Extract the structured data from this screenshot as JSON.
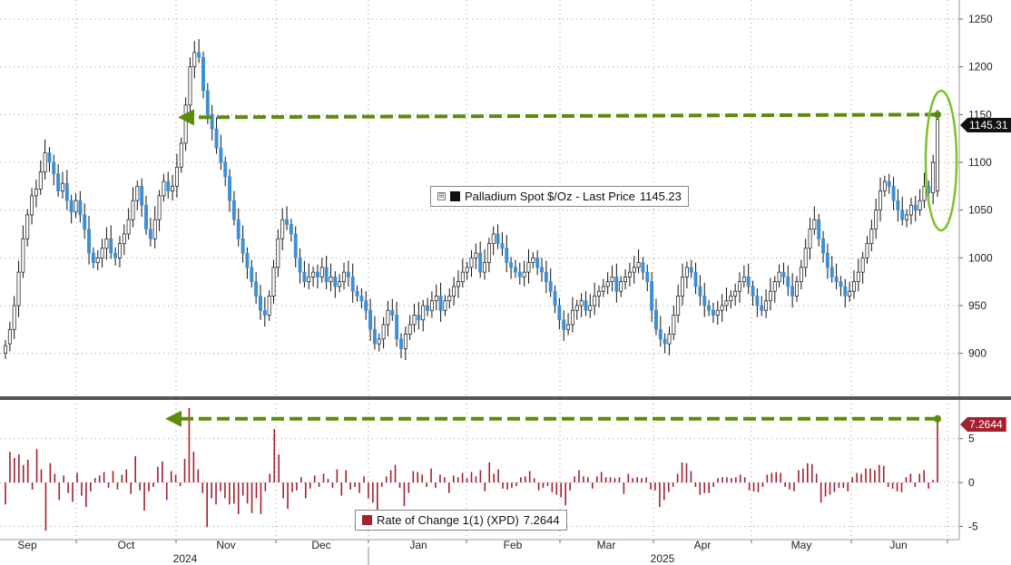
{
  "chart_data": [
    {
      "type": "candlestick",
      "legend": {
        "label": "Palladium Spot $/Oz - Last Price",
        "value": "1145.23",
        "toggle_glyph": "⊞"
      },
      "last_price_tag": "1145.31",
      "y_ticks": [
        "1250",
        "1200",
        "1150",
        "1100",
        "1050",
        "1000",
        "950",
        "900"
      ],
      "ylim": [
        855,
        1270
      ],
      "up_color": "#ffffff",
      "down_color": "#3a8fd6",
      "annotation_color": "#5b8c0a",
      "arrow_from_value": 1150,
      "closes": [
        908,
        925,
        950,
        985,
        1020,
        1045,
        1065,
        1072,
        1090,
        1110,
        1100,
        1088,
        1070,
        1078,
        1060,
        1048,
        1060,
        1045,
        1030,
        1005,
        995,
        1000,
        1010,
        1020,
        1005,
        1000,
        1015,
        1025,
        1040,
        1060,
        1075,
        1055,
        1030,
        1020,
        1040,
        1065,
        1080,
        1070,
        1075,
        1095,
        1120,
        1160,
        1200,
        1215,
        1210,
        1175,
        1150,
        1135,
        1115,
        1100,
        1085,
        1060,
        1040,
        1020,
        1005,
        990,
        975,
        960,
        945,
        940,
        960,
        990,
        1020,
        1040,
        1035,
        1025,
        1000,
        985,
        975,
        980,
        985,
        980,
        990,
        975,
        980,
        970,
        975,
        985,
        980,
        965,
        960,
        955,
        945,
        925,
        910,
        915,
        930,
        945,
        940,
        915,
        905,
        920,
        930,
        940,
        935,
        950,
        945,
        955,
        960,
        945,
        955,
        960,
        970,
        975,
        985,
        990,
        1000,
        1005,
        985,
        995,
        1015,
        1025,
        1015,
        1010,
        995,
        990,
        985,
        980,
        985,
        995,
        1000,
        990,
        985,
        975,
        965,
        950,
        935,
        925,
        930,
        945,
        950,
        955,
        945,
        950,
        960,
        965,
        970,
        975,
        980,
        965,
        975,
        980,
        985,
        990,
        995,
        985,
        975,
        945,
        925,
        915,
        910,
        920,
        940,
        960,
        980,
        990,
        985,
        970,
        960,
        950,
        945,
        940,
        945,
        950,
        955,
        960,
        965,
        975,
        980,
        970,
        960,
        950,
        945,
        955,
        965,
        975,
        985,
        980,
        970,
        960,
        975,
        990,
        1010,
        1030,
        1040,
        1020,
        1005,
        990,
        980,
        975,
        970,
        960,
        965,
        975,
        985,
        1000,
        1015,
        1030,
        1050,
        1070,
        1080,
        1075,
        1060,
        1050,
        1040,
        1045,
        1055,
        1050,
        1060,
        1075,
        1068,
        1100,
        1145
      ],
      "opens": [
        900,
        910,
        925,
        950,
        985,
        1020,
        1045,
        1065,
        1072,
        1090,
        1110,
        1100,
        1088,
        1070,
        1078,
        1060,
        1048,
        1060,
        1045,
        1030,
        1005,
        995,
        1000,
        1010,
        1020,
        1005,
        1000,
        1015,
        1025,
        1040,
        1060,
        1075,
        1055,
        1030,
        1020,
        1040,
        1065,
        1080,
        1070,
        1075,
        1095,
        1120,
        1160,
        1200,
        1215,
        1210,
        1175,
        1150,
        1135,
        1115,
        1100,
        1085,
        1060,
        1040,
        1020,
        1005,
        990,
        975,
        960,
        945,
        940,
        960,
        990,
        1020,
        1040,
        1035,
        1025,
        1000,
        985,
        975,
        980,
        985,
        980,
        990,
        975,
        980,
        970,
        975,
        985,
        980,
        965,
        960,
        955,
        945,
        925,
        910,
        915,
        930,
        945,
        940,
        915,
        905,
        920,
        930,
        940,
        935,
        950,
        945,
        955,
        960,
        945,
        955,
        960,
        970,
        975,
        985,
        990,
        1000,
        1005,
        985,
        995,
        1015,
        1025,
        1015,
        1010,
        995,
        990,
        985,
        980,
        985,
        995,
        1000,
        990,
        985,
        975,
        965,
        950,
        935,
        925,
        930,
        945,
        950,
        955,
        945,
        950,
        960,
        965,
        970,
        975,
        980,
        965,
        975,
        980,
        985,
        990,
        995,
        985,
        975,
        945,
        925,
        915,
        910,
        920,
        940,
        960,
        980,
        990,
        985,
        970,
        960,
        950,
        945,
        940,
        945,
        950,
        955,
        960,
        965,
        975,
        980,
        970,
        960,
        950,
        945,
        955,
        965,
        975,
        985,
        980,
        970,
        960,
        975,
        990,
        1010,
        1030,
        1040,
        1020,
        1005,
        990,
        980,
        975,
        970,
        960,
        965,
        975,
        985,
        1000,
        1015,
        1030,
        1050,
        1070,
        1080,
        1075,
        1060,
        1050,
        1040,
        1045,
        1055,
        1050,
        1060,
        1075,
        1068,
        1070
      ]
    },
    {
      "type": "bar",
      "legend": {
        "label": "Rate of Change 1(1) (XPD)",
        "value": "7.2644"
      },
      "last_value_tag": "7.2644",
      "y_ticks": [
        "5",
        "0",
        "-5"
      ],
      "ylim": [
        -6.2,
        9
      ],
      "bar_color": "#a3202f",
      "arrow_from_value": 7.2644,
      "values": [
        -2.5,
        3.5,
        2.8,
        3.2,
        2.0,
        2.6,
        -0.8,
        3.8,
        1.5,
        -5.5,
        2.2,
        1.0,
        -2.0,
        0.8,
        -1.2,
        -2.2,
        1.1,
        -1.5,
        -2.8,
        -1.0,
        0.5,
        0.8,
        1.2,
        -0.6,
        1.3,
        -0.8,
        0.9,
        1.5,
        -1.3,
        3.0,
        -0.9,
        -3.2,
        -1.0,
        -0.5,
        1.8,
        2.4,
        -2.0,
        1.3,
        0.9,
        -0.4,
        2.7,
        8.5,
        3.5,
        1.5,
        -1.2,
        -5.1,
        -1.8,
        -2.5,
        -1.0,
        -1.8,
        -2.5,
        -2.4,
        -3.6,
        -1.5,
        -2.4,
        -3.5,
        -1.8,
        -3.6,
        -1.0,
        1.0,
        6.1,
        3.2,
        -1.8,
        -3.0,
        -1.1,
        -0.9,
        0.6,
        -1.8,
        -0.7,
        0.8,
        -0.5,
        1.0,
        0.4,
        -0.6,
        1.5,
        -1.5,
        1.4,
        -0.8,
        -0.5,
        -1.2,
        0.7,
        -1.8,
        -2.3,
        -3.4,
        -0.5,
        0.7,
        1.4,
        2.0,
        -0.6,
        -2.7,
        -1.2,
        1.3,
        1.2,
        0.9,
        -0.5,
        1.6,
        -0.6,
        0.9,
        0.6,
        -1.2,
        0.8,
        0.6,
        1.1,
        0.5,
        1.2,
        0.7,
        1.4,
        -1.0,
        2.3,
        1.0,
        1.5,
        -0.7,
        -0.8,
        -0.6,
        -0.4,
        0.6,
        0.7,
        1.3,
        0.5,
        -0.9,
        -0.6,
        -0.4,
        -1.1,
        -1.4,
        -1.7,
        -2.6,
        -0.9,
        0.7,
        1.4,
        0.7,
        0.6,
        -0.7,
        0.7,
        1.2,
        0.6,
        0.6,
        0.5,
        0.6,
        -1.3,
        1.0,
        0.5,
        0.6,
        0.5,
        0.6,
        -0.8,
        -0.9,
        -2.8,
        -2.0,
        -1.1,
        -0.5,
        1.0,
        2.3,
        2.2,
        1.3,
        -0.5,
        -1.4,
        -1.2,
        -1.2,
        -0.5,
        0.5,
        0.6,
        0.6,
        0.5,
        0.6,
        0.9,
        0.6,
        -0.9,
        -1.0,
        -1.1,
        -0.5,
        0.9,
        1.1,
        1.2,
        1.1,
        -0.5,
        -0.8,
        -1.0,
        1.4,
        1.6,
        2.2,
        2.1,
        1.0,
        -2.3,
        -1.6,
        -1.4,
        -1.1,
        -0.6,
        -0.6,
        -1.0,
        0.6,
        1.1,
        1.0,
        1.6,
        1.6,
        1.4,
        2.0,
        1.9,
        -0.5,
        -0.7,
        -1.0,
        -1.1,
        0.6,
        1.0,
        -0.5,
        1.0,
        1.4,
        -0.7,
        0.3,
        7.26
      ]
    }
  ],
  "x_axis": {
    "months": [
      "Sep",
      "Oct",
      "Nov",
      "Dec",
      "Jan",
      "Feb",
      "Mar",
      "Apr",
      "May",
      "Jun"
    ],
    "years": [
      "2024",
      "2025"
    ]
  }
}
